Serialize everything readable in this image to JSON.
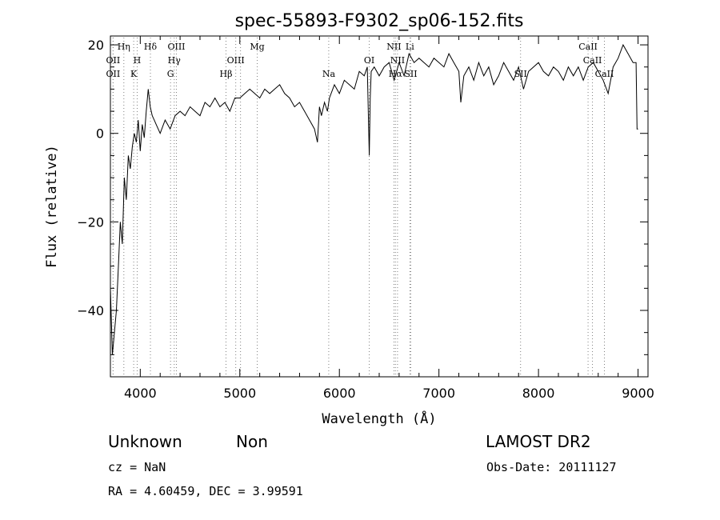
{
  "chart_data": {
    "type": "line",
    "title": "spec-55893-F9302_sp06-152.fits",
    "xlabel": "Wavelength (Å)",
    "ylabel": "Flux (relative)",
    "xlim": [
      3700,
      9100
    ],
    "ylim": [
      -55,
      22
    ],
    "xticks": [
      4000,
      5000,
      6000,
      7000,
      8000,
      9000
    ],
    "yticks": [
      -40,
      -20,
      0,
      20
    ],
    "grid": false,
    "line_color": "#000000",
    "marker_color": "#808080",
    "series": [
      {
        "x": [
          3700,
          3720,
          3740,
          3760,
          3780,
          3800,
          3820,
          3840,
          3860,
          3880,
          3900,
          3920,
          3940,
          3960,
          3980,
          4000,
          4020,
          4040,
          4060,
          4080,
          4100,
          4120,
          4140,
          4160,
          4200,
          4250,
          4300,
          4350,
          4400,
          4450,
          4500,
          4550,
          4600,
          4650,
          4700,
          4750,
          4800,
          4850,
          4900,
          4950,
          5000,
          5050,
          5100,
          5150,
          5200,
          5250,
          5300,
          5350,
          5400,
          5450,
          5500,
          5550,
          5600,
          5650,
          5700,
          5750,
          5780,
          5800,
          5820,
          5850,
          5880,
          5900,
          5950,
          6000,
          6050,
          6100,
          6150,
          6200,
          6250,
          6280,
          6300,
          6310,
          6320,
          6350,
          6400,
          6450,
          6500,
          6550,
          6600,
          6650,
          6700,
          6750,
          6800,
          6850,
          6900,
          6950,
          7000,
          7050,
          7100,
          7150,
          7200,
          7220,
          7250,
          7300,
          7350,
          7400,
          7450,
          7500,
          7550,
          7600,
          7650,
          7700,
          7750,
          7800,
          7850,
          7900,
          7950,
          8000,
          8050,
          8100,
          8150,
          8200,
          8250,
          8300,
          8350,
          8400,
          8450,
          8500,
          8550,
          8600,
          8650,
          8700,
          8750,
          8800,
          8850,
          8900,
          8950,
          8980,
          8990,
          9000
        ],
        "values": [
          -35,
          -50,
          -45,
          -40,
          -30,
          -20,
          -25,
          -10,
          -15,
          -5,
          -8,
          -3,
          0,
          -2,
          3,
          -4,
          2,
          -1,
          5,
          10,
          6,
          4,
          3,
          2,
          0,
          3,
          1,
          4,
          5,
          4,
          6,
          5,
          4,
          7,
          6,
          8,
          6,
          7,
          5,
          8,
          8,
          9,
          10,
          9,
          8,
          10,
          9,
          10,
          11,
          9,
          8,
          6,
          7,
          5,
          3,
          1,
          -2,
          6,
          4,
          7,
          5,
          8,
          11,
          9,
          12,
          11,
          10,
          14,
          13,
          15,
          -5,
          8,
          14,
          15,
          13,
          15,
          16,
          12,
          16,
          13,
          18,
          16,
          17,
          16,
          15,
          17,
          16,
          15,
          18,
          16,
          14,
          7,
          13,
          15,
          12,
          16,
          13,
          15,
          11,
          13,
          16,
          14,
          12,
          15,
          10,
          14,
          15,
          16,
          14,
          13,
          15,
          14,
          12,
          15,
          13,
          15,
          12,
          15,
          16,
          14,
          12,
          9,
          15,
          17,
          20,
          18,
          16,
          16,
          1,
          1
        ]
      }
    ],
    "annotations": [
      {
        "x": 3727,
        "label": "OII",
        "row": 2
      },
      {
        "x": 3727,
        "label": "OII",
        "row": 3
      },
      {
        "x": 3835,
        "label": "Hη",
        "row": 1
      },
      {
        "x": 3934,
        "label": "K",
        "row": 3
      },
      {
        "x": 3969,
        "label": "H",
        "row": 2
      },
      {
        "x": 4102,
        "label": "Hδ",
        "row": 1
      },
      {
        "x": 4304,
        "label": "G",
        "row": 3
      },
      {
        "x": 4341,
        "label": "Hγ",
        "row": 2
      },
      {
        "x": 4363,
        "label": "OIII",
        "row": 1
      },
      {
        "x": 4861,
        "label": "Hβ",
        "row": 3
      },
      {
        "x": 4959,
        "label": "OIII",
        "row": 2
      },
      {
        "x": 5007,
        "label": "",
        "row": 2
      },
      {
        "x": 5175,
        "label": "Mg",
        "row": 1
      },
      {
        "x": 5893,
        "label": "Na",
        "row": 3
      },
      {
        "x": 6300,
        "label": "OI",
        "row": 2
      },
      {
        "x": 6548,
        "label": "NII",
        "row": 1
      },
      {
        "x": 6563,
        "label": "Hα",
        "row": 3
      },
      {
        "x": 6584,
        "label": "NII",
        "row": 2
      },
      {
        "x": 6708,
        "label": "Li",
        "row": 1
      },
      {
        "x": 6717,
        "label": "SII",
        "row": 3
      },
      {
        "x": 7820,
        "label": "SII",
        "row": 3
      },
      {
        "x": 8498,
        "label": "CaII",
        "row": 1
      },
      {
        "x": 8542,
        "label": "CaII",
        "row": 2
      },
      {
        "x": 8662,
        "label": "CaII",
        "row": 3
      }
    ]
  },
  "info": {
    "object_class": "Unknown",
    "subclass": "Non",
    "survey": "LAMOST DR2",
    "cz": "cz = NaN",
    "obs_date": "Obs-Date: 20111127",
    "coords": "RA =    4.60459, DEC =    3.99591"
  }
}
